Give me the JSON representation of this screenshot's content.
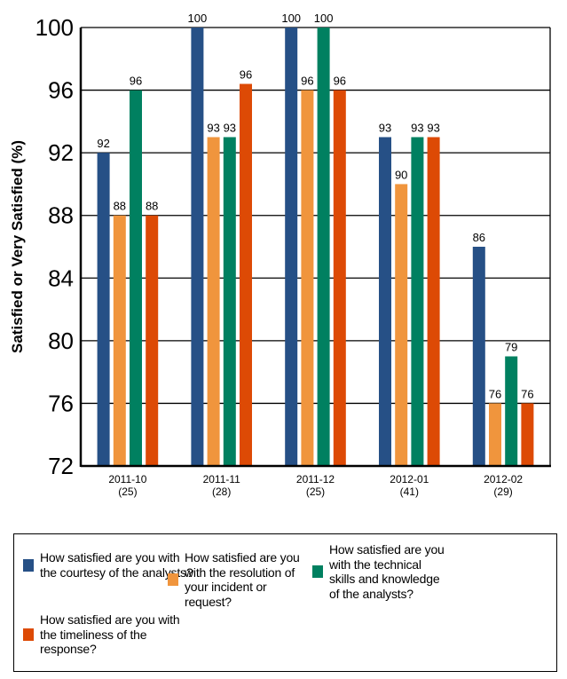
{
  "chart_data": {
    "type": "bar",
    "title": "",
    "xlabel": "",
    "ylabel": "Satisfied or Very Satisfied (%)",
    "ylim": [
      72,
      100
    ],
    "yticks": [
      72,
      76,
      80,
      84,
      88,
      92,
      96,
      100
    ],
    "grid": true,
    "legend_position": "bottom",
    "categories": [
      "2011-10",
      "2011-11",
      "2011-12",
      "2012-01",
      "2012-02"
    ],
    "category_counts": [
      "(25)",
      "(28)",
      "(25)",
      "(41)",
      "(29)"
    ],
    "series": [
      {
        "name": "How satisfied are you with the courtesy of the analysts?",
        "color": "#265086",
        "values": [
          92,
          100,
          100,
          93,
          86
        ],
        "labels": [
          "92",
          "100",
          "100",
          "93",
          "86"
        ]
      },
      {
        "name": "How satisfied are you with the resolution of your incident or request?",
        "color": "#F0953D",
        "values": [
          88,
          93,
          96,
          90,
          76
        ],
        "labels": [
          "88",
          "93",
          "96",
          "90",
          "76"
        ]
      },
      {
        "name": "How satisfied are you with the technical skills and knowledge of the analysts?",
        "color": "#008060",
        "values": [
          96,
          93,
          100,
          93,
          79
        ],
        "labels": [
          "96",
          "93",
          "100",
          "93",
          "79"
        ]
      },
      {
        "name": "How satisfied are you with the timeliness of the response?",
        "color": "#DD4A05",
        "values": [
          88,
          96.4,
          96,
          93,
          76
        ],
        "labels": [
          "88",
          "96",
          "96",
          "93",
          "76"
        ]
      }
    ]
  },
  "legend": {
    "items": [
      {
        "text": "How satisfied are you with the courtesy of the analysts?",
        "color": "#265086"
      },
      {
        "text": "How satisfied are you with the resolution of your incident or request?",
        "color": "#F0953D"
      },
      {
        "text": "How satisfied are you with the technical skills and knowledge of the analysts?",
        "color": "#008060"
      },
      {
        "text": "How satisfied are you with the timeliness of the response?",
        "color": "#DD4A05"
      }
    ]
  }
}
